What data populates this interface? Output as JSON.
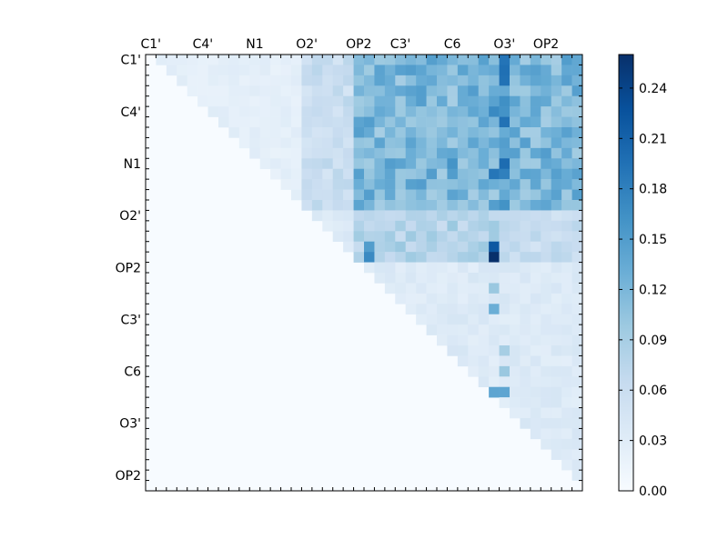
{
  "chart_data": {
    "type": "heatmap",
    "title": "",
    "xlabel": "",
    "ylabel": "",
    "n": 42,
    "x_tick_labels": [
      "C1'",
      "C4'",
      "N1",
      "O2'",
      "OP2",
      "C3'",
      "C6",
      "O3'",
      "OP2"
    ],
    "y_tick_labels": [
      "C1'",
      "C4'",
      "N1",
      "O2'",
      "OP2",
      "C3'",
      "C6",
      "O3'",
      "OP2"
    ],
    "x_tick_indices": [
      0,
      5,
      10,
      15,
      20,
      24,
      29,
      34,
      38
    ],
    "y_tick_indices": [
      0,
      5,
      10,
      15,
      20,
      25,
      30,
      35,
      40
    ],
    "x_tick_placement": "top",
    "colormap": "Blues",
    "colormap_stops": [
      "#f7fbff",
      "#deebf7",
      "#c6dbef",
      "#9ecae1",
      "#6baed6",
      "#4292c6",
      "#2171b5",
      "#08519c",
      "#08306b"
    ],
    "vmin": 0.0,
    "vmax": 0.26,
    "colorbar_ticks": [
      0.0,
      0.03,
      0.06,
      0.09,
      0.12,
      0.15,
      0.18,
      0.21,
      0.24
    ],
    "colorbar_tick_labels": [
      "0.00",
      "0.03",
      "0.06",
      "0.09",
      "0.12",
      "0.15",
      "0.18",
      "0.21",
      "0.24"
    ],
    "layout": "upper-triangular matrix (values zero on and below the diagonal)",
    "blocks": [
      {
        "rows": [
          0,
          14
        ],
        "cols": [
          15,
          19
        ],
        "value": 0.06
      },
      {
        "rows": [
          0,
          14
        ],
        "cols": [
          20,
          33
        ],
        "value": 0.12
      },
      {
        "rows": [
          0,
          14
        ],
        "cols": [
          34,
          34
        ],
        "value": 0.16
      },
      {
        "rows": [
          0,
          14
        ],
        "cols": [
          35,
          41
        ],
        "value": 0.12
      },
      {
        "rows": [
          0,
          14
        ],
        "cols": [
          1,
          14
        ],
        "value": 0.025
      },
      {
        "rows": [
          15,
          19
        ],
        "cols": [
          16,
          19
        ],
        "value": 0.035
      },
      {
        "rows": [
          15,
          19
        ],
        "cols": [
          20,
          33
        ],
        "value": 0.08
      },
      {
        "rows": [
          15,
          19
        ],
        "cols": [
          34,
          41
        ],
        "value": 0.06
      },
      {
        "rows": [
          20,
          41
        ],
        "cols": [
          21,
          41
        ],
        "value": 0.035
      }
    ],
    "highlights": [
      {
        "row": 19,
        "col": 33,
        "value": 0.26
      },
      {
        "row": 18,
        "col": 33,
        "value": 0.22
      },
      {
        "row": 19,
        "col": 21,
        "value": 0.17
      },
      {
        "row": 18,
        "col": 21,
        "value": 0.15
      },
      {
        "row": 11,
        "col": 33,
        "value": 0.19
      },
      {
        "row": 5,
        "col": 33,
        "value": 0.17
      },
      {
        "row": 10,
        "col": 29,
        "value": 0.16
      },
      {
        "row": 32,
        "col": 34,
        "value": 0.14
      },
      {
        "row": 32,
        "col": 33,
        "value": 0.14
      },
      {
        "row": 24,
        "col": 33,
        "value": 0.13
      },
      {
        "row": 0,
        "col": 40,
        "value": 0.15
      },
      {
        "row": 22,
        "col": 33,
        "value": 0.1
      },
      {
        "row": 30,
        "col": 34,
        "value": 0.1
      },
      {
        "row": 28,
        "col": 34,
        "value": 0.09
      }
    ]
  }
}
